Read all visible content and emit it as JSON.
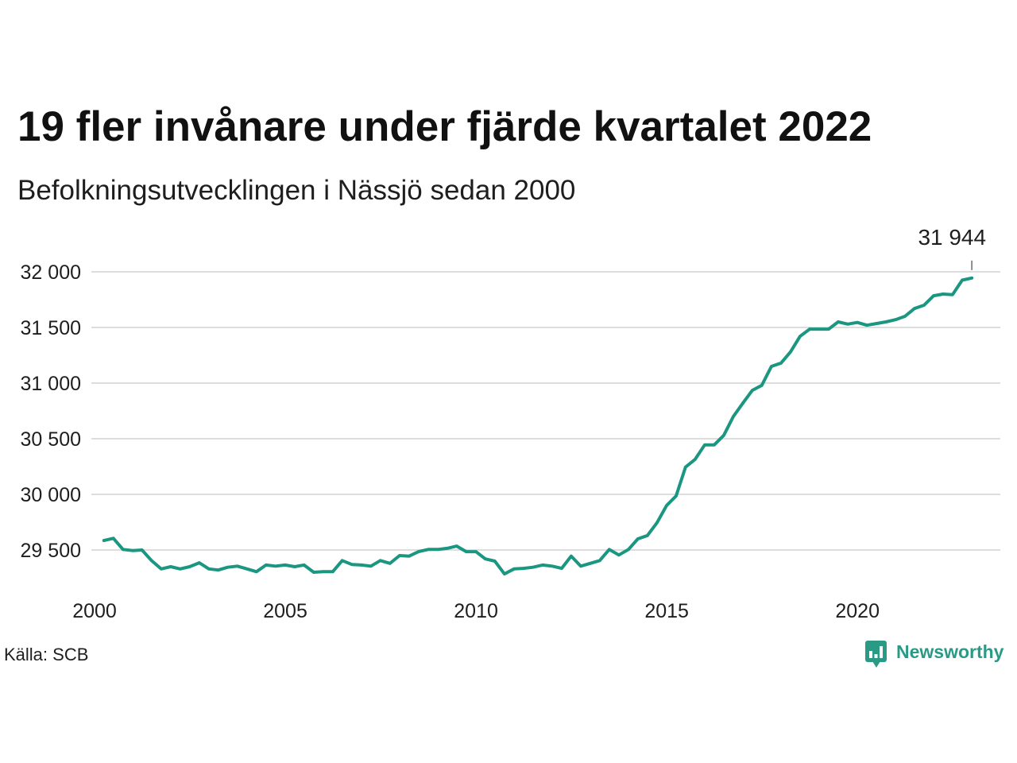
{
  "logo": {
    "text": "Newsworthy",
    "icon": "newsworthy-logo-icon",
    "color": "#2a9a86"
  },
  "chart_data": {
    "type": "line",
    "title": "19 fler invånare under fjärde kvartalet 2022",
    "subtitle": "Befolkningsutvecklingen i Nässjö sedan 2000",
    "source": "Källa: SCB",
    "x": [
      "2000-03-31",
      "2000-06-30",
      "2000-09-30",
      "2000-12-31",
      "2001-03-31",
      "2001-06-30",
      "2001-09-30",
      "2001-12-31",
      "2002-03-31",
      "2002-06-30",
      "2002-09-30",
      "2002-12-31",
      "2003-03-31",
      "2003-06-30",
      "2003-09-30",
      "2003-12-31",
      "2004-03-31",
      "2004-06-30",
      "2004-09-30",
      "2004-12-31",
      "2005-03-31",
      "2005-06-30",
      "2005-09-30",
      "2005-12-31",
      "2006-03-31",
      "2006-06-30",
      "2006-09-30",
      "2006-12-31",
      "2007-03-31",
      "2007-06-30",
      "2007-09-30",
      "2007-12-31",
      "2008-03-31",
      "2008-06-30",
      "2008-09-30",
      "2008-12-31",
      "2009-03-31",
      "2009-06-30",
      "2009-09-30",
      "2009-12-31",
      "2010-03-31",
      "2010-06-30",
      "2010-09-30",
      "2010-12-31",
      "2011-03-31",
      "2011-06-30",
      "2011-09-30",
      "2011-12-31",
      "2012-03-31",
      "2012-06-30",
      "2012-09-30",
      "2012-12-31",
      "2013-03-31",
      "2013-06-30",
      "2013-09-30",
      "2013-12-31",
      "2014-03-31",
      "2014-06-30",
      "2014-09-30",
      "2014-12-31",
      "2015-03-31",
      "2015-06-30",
      "2015-09-30",
      "2015-12-31",
      "2016-03-31",
      "2016-06-30",
      "2016-09-30",
      "2016-12-31",
      "2017-03-31",
      "2017-06-30",
      "2017-09-30",
      "2017-12-31",
      "2018-03-31",
      "2018-06-30",
      "2018-09-30",
      "2018-12-31",
      "2019-03-31",
      "2019-06-30",
      "2019-09-30",
      "2019-12-31",
      "2020-03-31",
      "2020-06-30",
      "2020-09-30",
      "2020-12-31",
      "2021-03-31",
      "2021-06-30",
      "2021-09-30",
      "2021-12-31",
      "2022-03-31",
      "2022-06-30",
      "2022-09-30",
      "2022-12-31"
    ],
    "series": [
      {
        "color": "#1a9681",
        "values": [
          29585,
          29605,
          29505,
          29495,
          29500,
          29405,
          29330,
          29350,
          29330,
          29350,
          29385,
          29330,
          29320,
          29345,
          29355,
          29330,
          29305,
          29365,
          29355,
          29365,
          29350,
          29365,
          29300,
          29305,
          29305,
          29405,
          29370,
          29365,
          29355,
          29405,
          29380,
          29450,
          29445,
          29485,
          29505,
          29505,
          29515,
          29535,
          29485,
          29485,
          29420,
          29400,
          29285,
          29330,
          29335,
          29345,
          29365,
          29355,
          29335,
          29445,
          29355,
          29380,
          29405,
          29505,
          29455,
          29505,
          29600,
          29630,
          29745,
          29900,
          29985,
          30245,
          30315,
          30445,
          30445,
          30530,
          30700,
          30820,
          30935,
          30980,
          31150,
          31180,
          31280,
          31420,
          31485,
          31485,
          31485,
          31550,
          31530,
          31545,
          31520,
          31535,
          31550,
          31570,
          31600,
          31670,
          31700,
          31785,
          31800,
          31795,
          31925,
          31944
        ]
      }
    ],
    "xlim": [
      "2000-01-01",
      "2023-09-30"
    ],
    "ylim": [
      29150,
      32050
    ],
    "xticks": [
      {
        "value": "2000-01-01",
        "label": "2000"
      },
      {
        "value": "2005-01-01",
        "label": "2005"
      },
      {
        "value": "2010-01-01",
        "label": "2010"
      },
      {
        "value": "2015-01-01",
        "label": "2015"
      },
      {
        "value": "2020-01-01",
        "label": "2020"
      }
    ],
    "yticks": [
      {
        "value": 29500,
        "label": "29 500"
      },
      {
        "value": 30000,
        "label": "30 000"
      },
      {
        "value": 30500,
        "label": "30 500"
      },
      {
        "value": 31000,
        "label": "31 000"
      },
      {
        "value": 31500,
        "label": "31 500"
      },
      {
        "value": 32000,
        "label": "32 000"
      }
    ],
    "grid": {
      "x": false,
      "y": true
    },
    "annotations": [
      {
        "x": "2022-12-31",
        "y": 31944,
        "text": "31 944"
      }
    ]
  }
}
